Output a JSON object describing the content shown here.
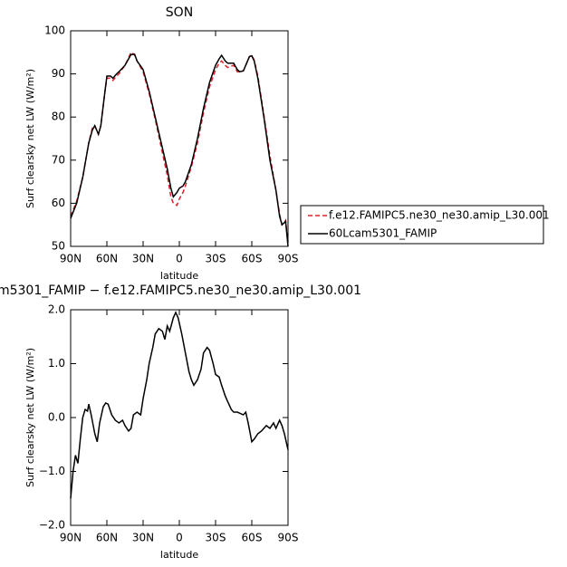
{
  "chart_data": [
    {
      "type": "line",
      "title": "SON",
      "xlabel": "latitude",
      "ylabel": "Surf clearsky net LW (W/m²)",
      "xlim": [
        90,
        -90
      ],
      "ylim": [
        50,
        100
      ],
      "xticks": [
        {
          "value": 90,
          "label": "90N"
        },
        {
          "value": 60,
          "label": "60N"
        },
        {
          "value": 30,
          "label": "30N"
        },
        0,
        {
          "value": -30,
          "label": "30S"
        },
        {
          "value": -60,
          "label": "60S"
        },
        {
          "value": -90,
          "label": "90S"
        }
      ],
      "yticks": [
        50,
        60,
        70,
        80,
        90,
        100
      ],
      "legend": "right",
      "x": [
        90,
        85,
        80,
        75,
        72,
        70,
        67,
        65,
        62,
        60,
        57,
        55,
        52,
        50,
        45,
        40,
        37,
        35,
        30,
        25,
        20,
        15,
        10,
        7,
        5,
        2,
        0,
        -3,
        -5,
        -10,
        -15,
        -20,
        -25,
        -30,
        -33,
        -35,
        -38,
        -40,
        -45,
        -48,
        -50,
        -53,
        -55,
        -58,
        -60,
        -62,
        -65,
        -70,
        -75,
        -80,
        -83,
        -85,
        -87,
        -88,
        -90
      ],
      "series": [
        {
          "name": "f.e12.FAMIPC5.ne30_ne30.amip_L30.001",
          "color": "#e0202a",
          "style": "dashed",
          "values": [
            57,
            60.5,
            66,
            74,
            77.5,
            78,
            76,
            78,
            85,
            89,
            89,
            88.5,
            89.5,
            90,
            92,
            95,
            94.5,
            93,
            90.5,
            85.5,
            79.5,
            73,
            66.5,
            61.5,
            60,
            59.5,
            61,
            62.5,
            64,
            68.5,
            74,
            81,
            87,
            91,
            92.5,
            93,
            92,
            91.5,
            92,
            90.5,
            90.5,
            90.7,
            92,
            94,
            94.3,
            93.2,
            89.5,
            80.5,
            71,
            63,
            57.5,
            55,
            55.5,
            56,
            51
          ]
        },
        {
          "name": "60Lcam5301_FAMIP",
          "color": "#000000",
          "style": "solid",
          "values": [
            56.5,
            60,
            66,
            74,
            77,
            78,
            76,
            78,
            85,
            89.5,
            89.5,
            89,
            90,
            90.5,
            92,
            94.5,
            94.5,
            93,
            91,
            86,
            80,
            74,
            68,
            63.5,
            61.5,
            62.5,
            63.5,
            64,
            65,
            69,
            75,
            82,
            88,
            92,
            93.5,
            94.3,
            93,
            92.5,
            92.5,
            91,
            90.5,
            90.7,
            92,
            94,
            94.2,
            93,
            89,
            80,
            70,
            63,
            57,
            55,
            55.5,
            55.8,
            50
          ]
        }
      ]
    },
    {
      "type": "line",
      "title": "m5301_FAMIP − f.e12.FAMIPC5.ne30_ne30.amip_L30.001",
      "xlabel": "latitude",
      "ylabel": "Surf clearsky net LW (W/m²)",
      "xlim": [
        90,
        -90
      ],
      "ylim": [
        -2,
        2
      ],
      "xticks": [
        {
          "value": 90,
          "label": "90N"
        },
        {
          "value": 60,
          "label": "60N"
        },
        {
          "value": 30,
          "label": "30N"
        },
        0,
        {
          "value": -30,
          "label": "30S"
        },
        {
          "value": -60,
          "label": "60S"
        },
        {
          "value": -90,
          "label": "90S"
        }
      ],
      "yticks": [
        {
          "value": -2,
          "label": "−2.0"
        },
        {
          "value": -1,
          "label": "−1.0"
        },
        {
          "value": 0,
          "label": "0.0"
        },
        {
          "value": 1,
          "label": "1.0"
        },
        {
          "value": 2,
          "label": "2.0"
        }
      ],
      "color": "#000000",
      "x": [
        90,
        88,
        86,
        84,
        82,
        80,
        78,
        76,
        75,
        73,
        70,
        68,
        66,
        63,
        61,
        59,
        56,
        53,
        50,
        47,
        45,
        42,
        40,
        38,
        35,
        32,
        30,
        27,
        25,
        22,
        20,
        17,
        14,
        12,
        10,
        8,
        5,
        3,
        1,
        -2,
        -5,
        -8,
        -10,
        -12,
        -15,
        -18,
        -20,
        -23,
        -25,
        -28,
        -30,
        -33,
        -35,
        -38,
        -40,
        -43,
        -45,
        -48,
        -50,
        -53,
        -55,
        -57,
        -60,
        -62,
        -65,
        -68,
        -72,
        -75,
        -78,
        -80,
        -83,
        -85,
        -87,
        -90
      ],
      "values": [
        -1.5,
        -1.0,
        -0.7,
        -0.85,
        -0.4,
        0,
        0.15,
        0.12,
        0.25,
        0.05,
        -0.3,
        -0.45,
        -0.1,
        0.2,
        0.27,
        0.25,
        0.05,
        -0.05,
        -0.1,
        -0.05,
        -0.15,
        -0.25,
        -0.2,
        0.05,
        0.1,
        0.05,
        0.35,
        0.7,
        1.0,
        1.3,
        1.55,
        1.65,
        1.6,
        1.45,
        1.7,
        1.6,
        1.85,
        1.95,
        1.85,
        1.55,
        1.2,
        0.85,
        0.7,
        0.6,
        0.7,
        0.9,
        1.2,
        1.3,
        1.25,
        1.0,
        0.8,
        0.75,
        0.6,
        0.4,
        0.3,
        0.15,
        0.1,
        0.1,
        0.08,
        0.05,
        0.1,
        -0.1,
        -0.45,
        -0.4,
        -0.3,
        -0.25,
        -0.15,
        -0.2,
        -0.1,
        -0.2,
        -0.05,
        -0.15,
        -0.3,
        -0.6
      ]
    }
  ]
}
